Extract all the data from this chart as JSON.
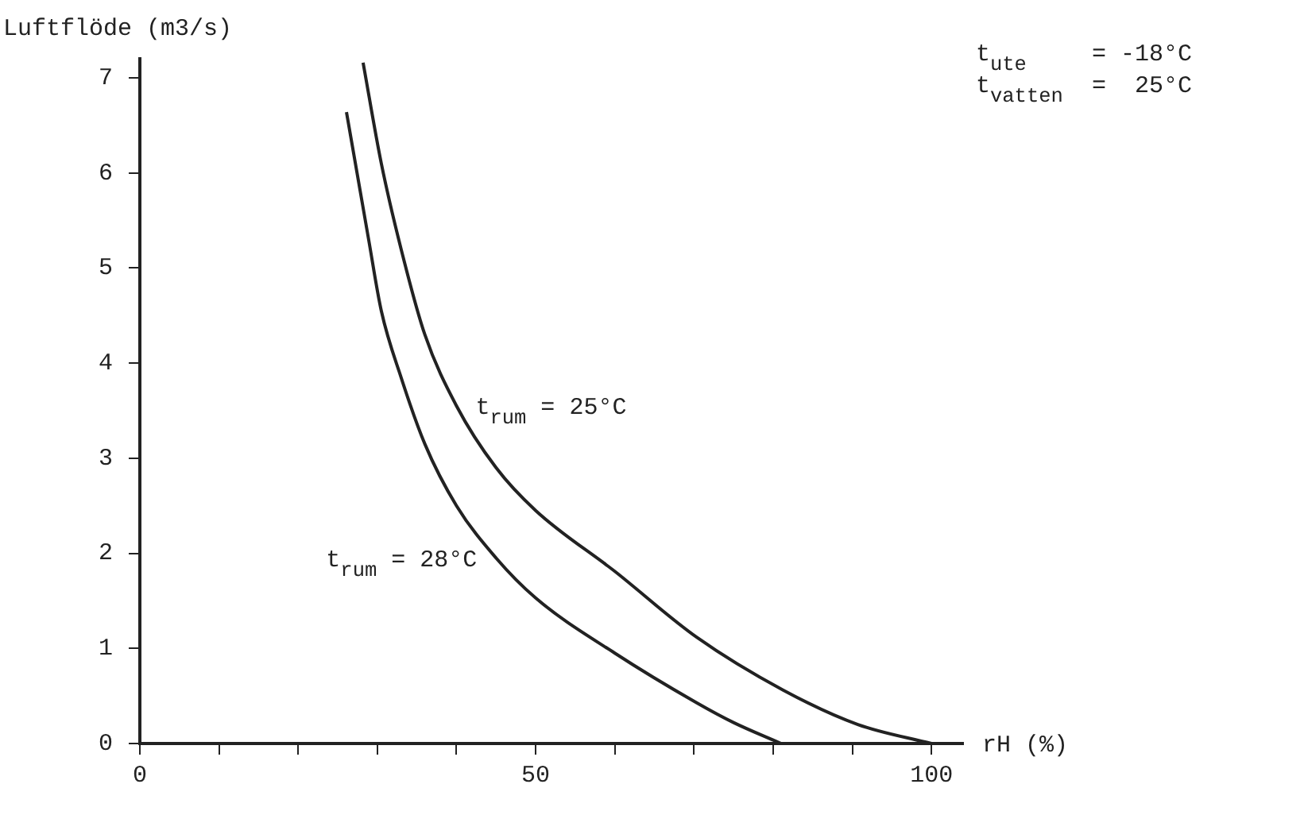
{
  "chart_data": {
    "type": "line",
    "xlabel": "rH (%)",
    "ylabel": "Luftflöde (m3/s)",
    "xlim": [
      0,
      104
    ],
    "ylim": [
      0,
      7.2
    ],
    "xticks": [
      0,
      {
        "value": 10,
        "label": null
      },
      {
        "value": 20,
        "label": null
      },
      {
        "value": 30,
        "label": null
      },
      {
        "value": 40,
        "label": null
      },
      50,
      {
        "value": 60,
        "label": null
      },
      {
        "value": 70,
        "label": null
      },
      {
        "value": 80,
        "label": null
      },
      {
        "value": 90,
        "label": null
      },
      100
    ],
    "yticks": [
      0,
      1,
      2,
      3,
      4,
      5,
      6,
      7
    ],
    "grid": false,
    "legend": false,
    "marker": "none",
    "line_style": "solid",
    "series": [
      {
        "name": "t$_{rum}$ = 28°C",
        "color": "#222222",
        "x": [
          26.1,
          28.9,
          30.5,
          33,
          36,
          40,
          45,
          50,
          60,
          70.3,
          75,
          81
        ],
        "values": [
          6.64,
          5.3,
          4.55,
          3.85,
          3.15,
          2.5,
          1.95,
          1.53,
          0.95,
          0.43,
          0.22,
          0
        ]
      },
      {
        "name": "t$_{rum}$ = 25°C",
        "color": "#222222",
        "x": [
          28.2,
          30.5,
          33,
          36,
          40,
          45,
          50,
          60,
          70.3,
          81.3,
          90.7,
          100
        ],
        "values": [
          7.16,
          6.1,
          5.2,
          4.3,
          3.55,
          2.9,
          2.45,
          1.81,
          1.12,
          0.56,
          0.2,
          0
        ]
      }
    ],
    "annotations": [
      "t$_{ute}$ = -18°C",
      "t$_{vatten}$ = 25°C"
    ]
  }
}
